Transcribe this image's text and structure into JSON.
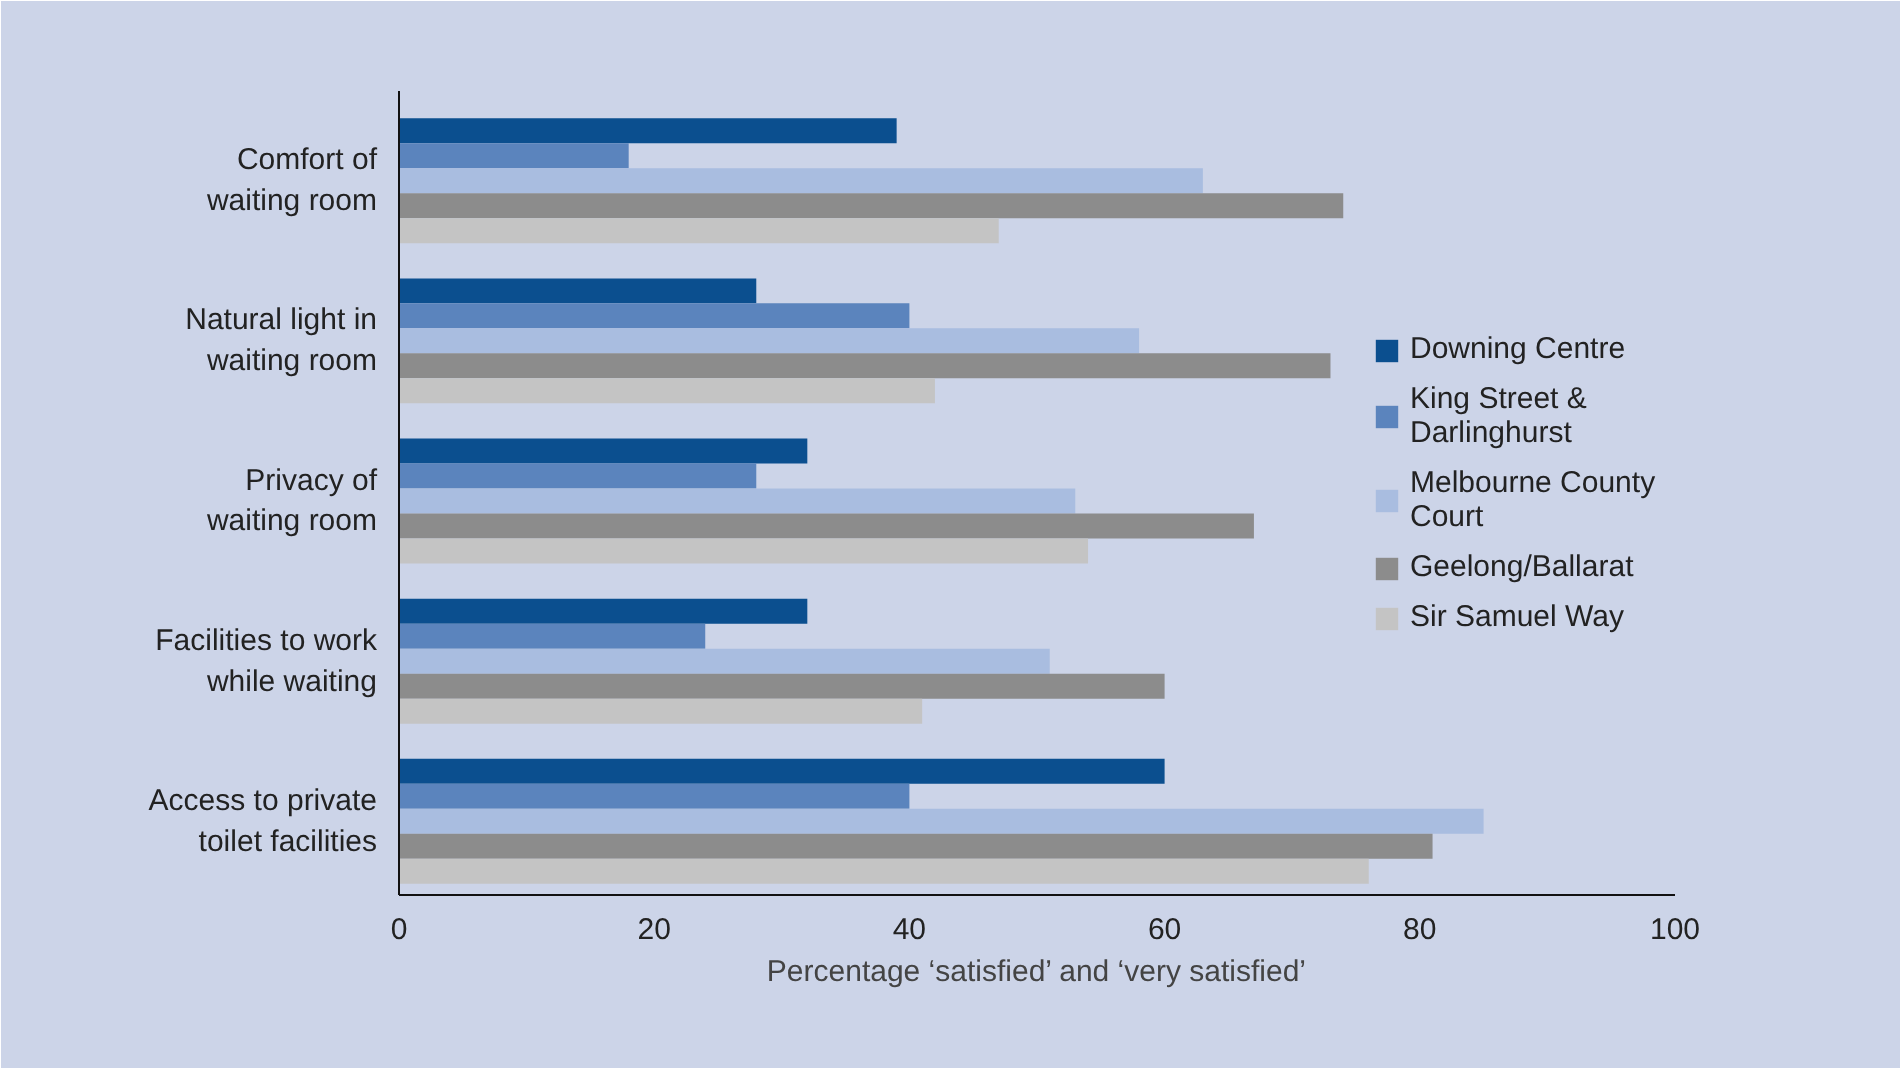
{
  "chart_data": {
    "type": "bar",
    "orientation": "horizontal",
    "categories": [
      "Comfort of waiting room",
      "Natural light in waiting room",
      "Privacy of waiting room",
      "Facilities to work while waiting",
      "Access to private toilet facilities"
    ],
    "series": [
      {
        "name": "Downing Centre",
        "color": "#0b4f8f",
        "values": [
          39,
          28,
          32,
          32,
          60
        ]
      },
      {
        "name": "King Street & Darlinghurst",
        "color": "#5b84bd",
        "values": [
          18,
          40,
          28,
          24,
          40
        ]
      },
      {
        "name": "Melbourne County Court",
        "color": "#a9bde0",
        "values": [
          63,
          58,
          53,
          51,
          85
        ]
      },
      {
        "name": "Geelong/Ballarat",
        "color": "#8c8c8c",
        "values": [
          74,
          73,
          67,
          60,
          81
        ]
      },
      {
        "name": "Sir Samuel Way",
        "color": "#c4c4c4",
        "values": [
          47,
          42,
          54,
          41,
          76
        ]
      }
    ],
    "xlabel": "Percentage ‘satisfied’ and ‘very satisfied’",
    "xlim": [
      0,
      100
    ],
    "xticks": [
      0,
      20,
      40,
      60,
      80,
      100
    ],
    "grid": false,
    "legend": "right"
  }
}
